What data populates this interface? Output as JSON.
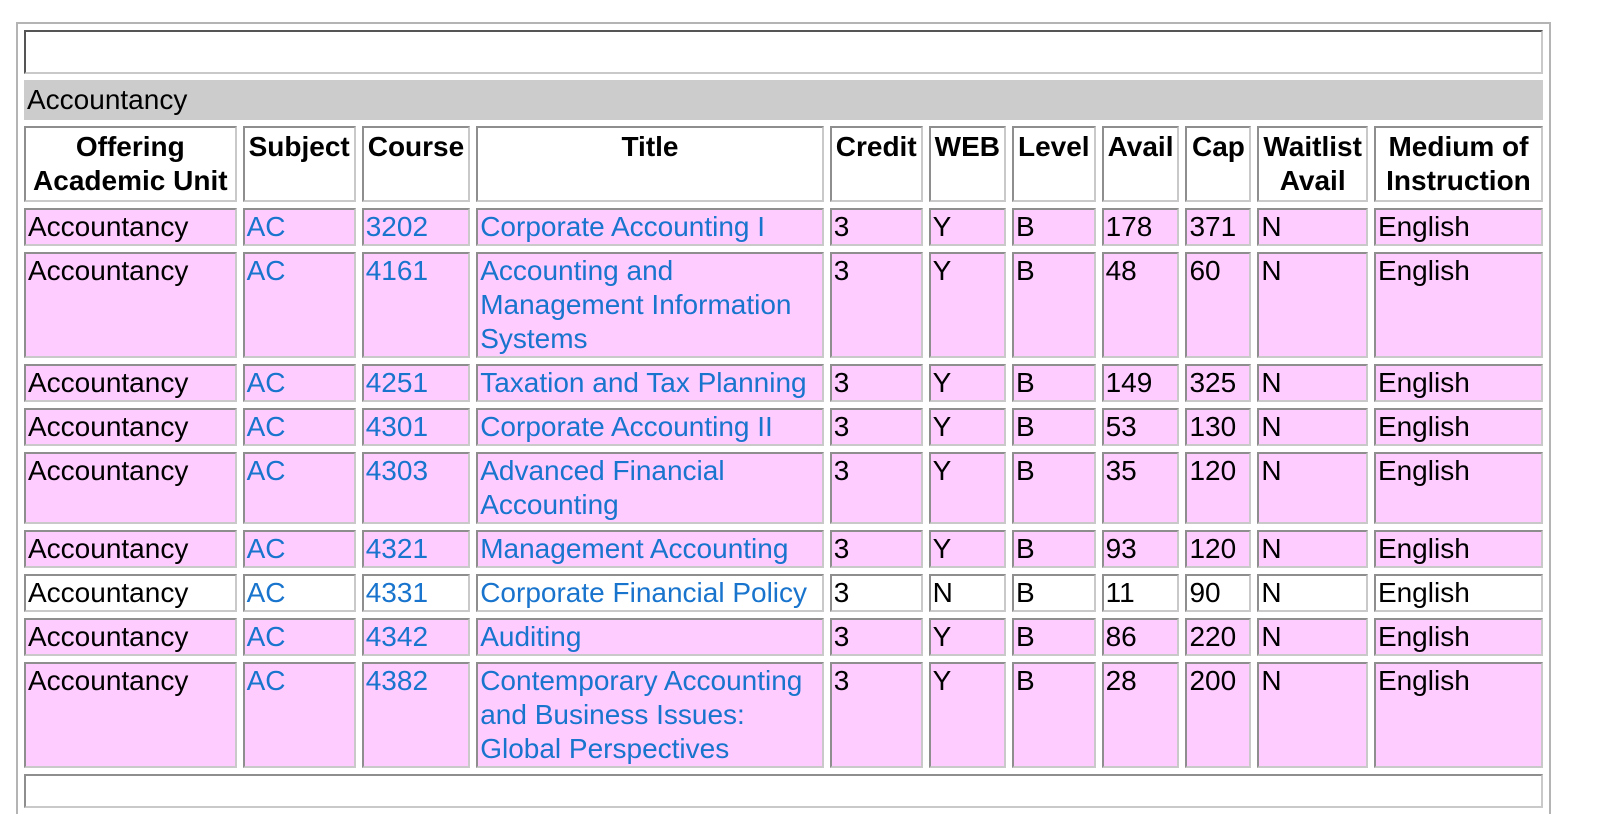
{
  "section_title": "Accountancy",
  "header": {
    "unit": "Offering Academic Unit",
    "subject": "Subject",
    "course": "Course",
    "title": "Title",
    "credit": "Credit",
    "web": "WEB",
    "level": "Level",
    "avail": "Avail",
    "cap": "Cap",
    "waitlist": "Waitlist Avail",
    "medium": "Medium of Instruction"
  },
  "rows": [
    {
      "unit": "Accountancy",
      "subject": "AC",
      "course": "3202",
      "title": "Corporate Accounting I",
      "credit": "3",
      "web": "Y",
      "level": "B",
      "avail": "178",
      "cap": "371",
      "waitlist": "N",
      "medium": "English"
    },
    {
      "unit": "Accountancy",
      "subject": "AC",
      "course": "4161",
      "title": "Accounting and Management Information Systems",
      "credit": "3",
      "web": "Y",
      "level": "B",
      "avail": "48",
      "cap": "60",
      "waitlist": "N",
      "medium": "English"
    },
    {
      "unit": "Accountancy",
      "subject": "AC",
      "course": "4251",
      "title": "Taxation and Tax Planning",
      "credit": "3",
      "web": "Y",
      "level": "B",
      "avail": "149",
      "cap": "325",
      "waitlist": "N",
      "medium": "English"
    },
    {
      "unit": "Accountancy",
      "subject": "AC",
      "course": "4301",
      "title": "Corporate Accounting II",
      "credit": "3",
      "web": "Y",
      "level": "B",
      "avail": "53",
      "cap": "130",
      "waitlist": "N",
      "medium": "English"
    },
    {
      "unit": "Accountancy",
      "subject": "AC",
      "course": "4303",
      "title": "Advanced Financial Accounting",
      "credit": "3",
      "web": "Y",
      "level": "B",
      "avail": "35",
      "cap": "120",
      "waitlist": "N",
      "medium": "English"
    },
    {
      "unit": "Accountancy",
      "subject": "AC",
      "course": "4321",
      "title": "Management Accounting",
      "credit": "3",
      "web": "Y",
      "level": "B",
      "avail": "93",
      "cap": "120",
      "waitlist": "N",
      "medium": "English"
    },
    {
      "unit": "Accountancy",
      "subject": "AC",
      "course": "4331",
      "title": "Corporate Financial Policy",
      "credit": "3",
      "web": "N",
      "level": "B",
      "avail": "11",
      "cap": "90",
      "waitlist": "N",
      "medium": "English"
    },
    {
      "unit": "Accountancy",
      "subject": "AC",
      "course": "4342",
      "title": "Auditing",
      "credit": "3",
      "web": "Y",
      "level": "B",
      "avail": "86",
      "cap": "220",
      "waitlist": "N",
      "medium": "English"
    },
    {
      "unit": "Accountancy",
      "subject": "AC",
      "course": "4382",
      "title": "Contemporary Accounting and Business Issues: Global Perspectives",
      "credit": "3",
      "web": "Y",
      "level": "B",
      "avail": "28",
      "cap": "200",
      "waitlist": "N",
      "medium": "English"
    }
  ],
  "colors": {
    "row_highlight": "#ffccff",
    "section_bg": "#cccccc",
    "link": "#1874cd"
  }
}
